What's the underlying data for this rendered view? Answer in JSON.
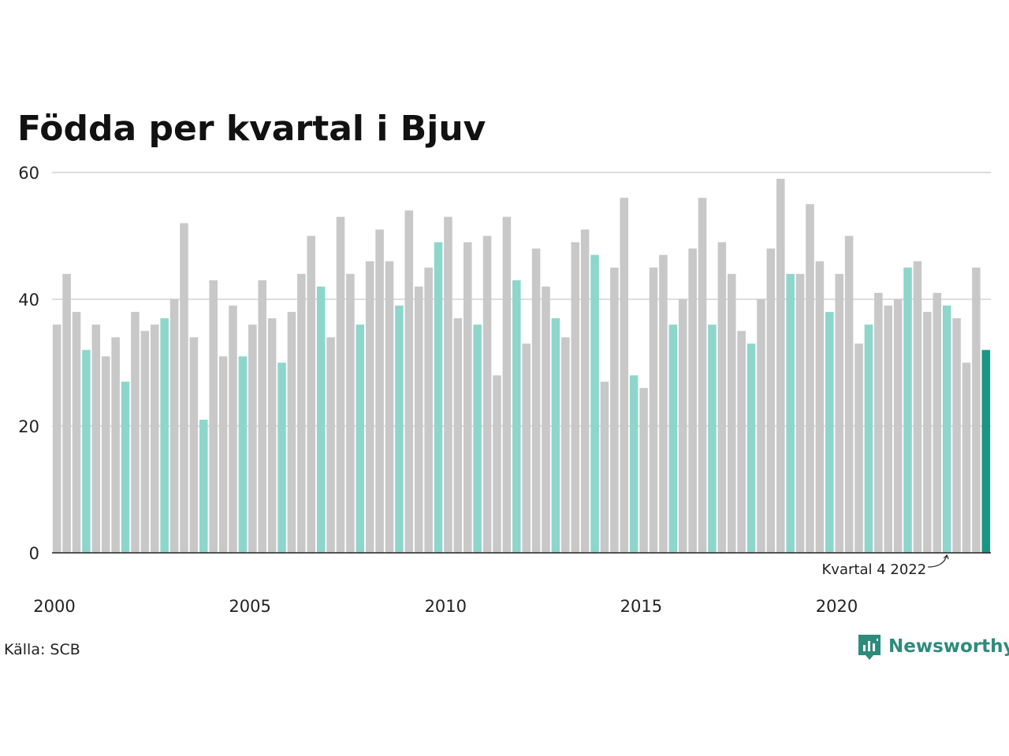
{
  "chart_data": {
    "type": "bar",
    "title": "Födda per kvartal i Bjuv",
    "xlabel": "",
    "ylabel": "",
    "ylim": [
      0,
      60
    ],
    "yticks": [
      "0",
      "20",
      "40",
      "60"
    ],
    "xticks": [
      "2000",
      "2005",
      "2010",
      "2015",
      "2020"
    ],
    "grid": true,
    "start_year": 2000,
    "values": [
      36,
      44,
      38,
      32,
      36,
      31,
      34,
      27,
      38,
      35,
      36,
      37,
      40,
      52,
      34,
      21,
      43,
      31,
      39,
      31,
      36,
      43,
      37,
      30,
      38,
      44,
      50,
      42,
      34,
      53,
      44,
      36,
      46,
      51,
      46,
      39,
      54,
      42,
      45,
      49,
      53,
      37,
      49,
      36,
      50,
      28,
      53,
      43,
      33,
      48,
      42,
      37,
      34,
      49,
      51,
      47,
      27,
      45,
      56,
      28,
      26,
      45,
      47,
      36,
      40,
      48,
      56,
      36,
      49,
      44,
      35,
      33,
      40,
      48,
      59,
      44,
      44,
      55,
      46,
      38,
      44,
      50,
      33,
      36,
      41,
      39,
      40,
      45,
      46,
      38,
      41,
      39,
      37,
      30,
      45,
      32
    ],
    "colors": {
      "bar": "#c8c8c8",
      "q4": "#8ed6cc",
      "latest": "#1a9685",
      "grid": "#dddddd",
      "axis": "#222222"
    },
    "annotation": "Kvartal 4 2022",
    "source": "Källa: SCB"
  },
  "brand": {
    "name": "Newsworthy",
    "icon": "newsworthy-logo-icon",
    "color": "#2e8b7c"
  }
}
